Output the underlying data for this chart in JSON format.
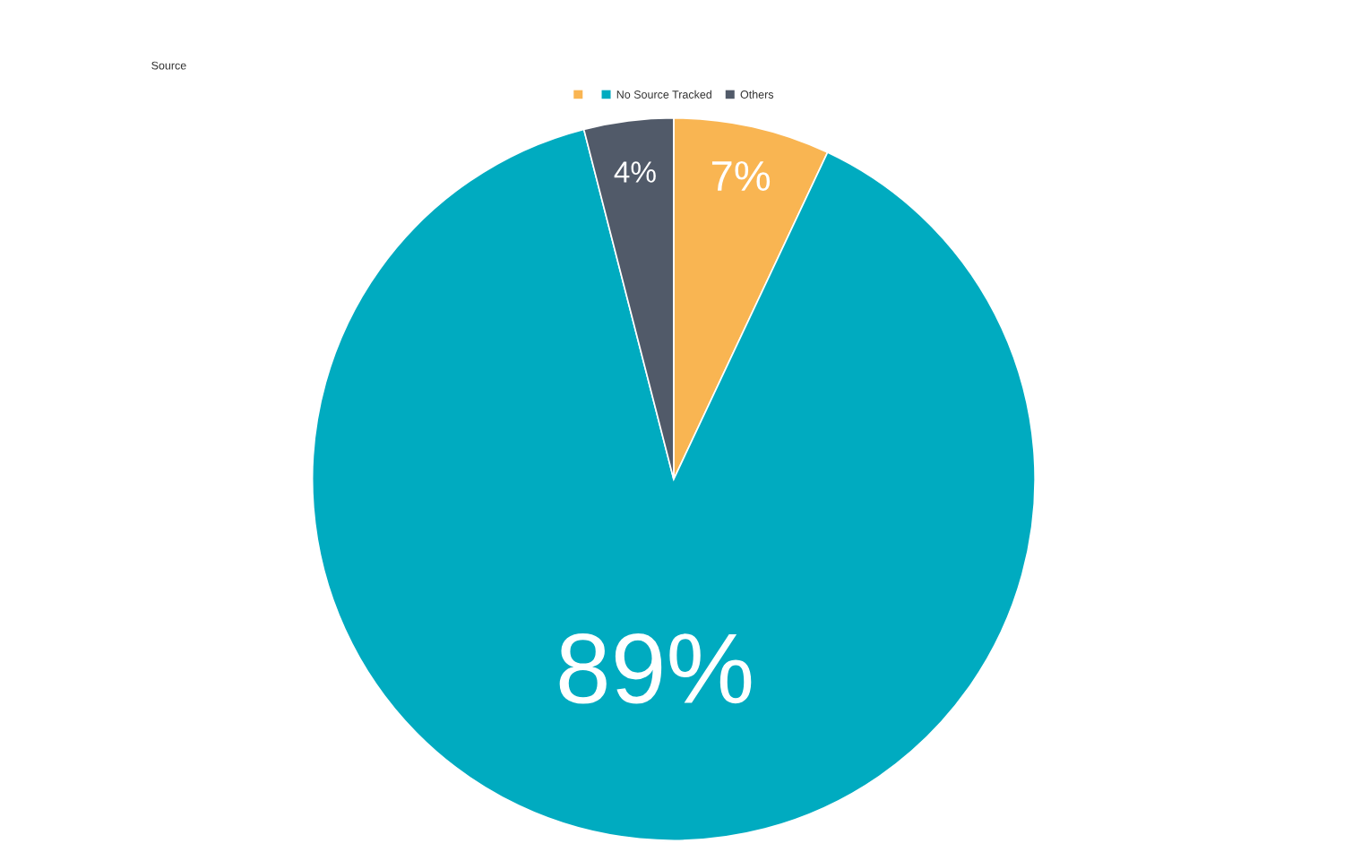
{
  "chart_data": {
    "type": "pie",
    "title": "Source",
    "categories": [
      null,
      "No Source Tracked",
      "Others"
    ],
    "values": [
      7,
      89,
      4
    ],
    "colors": [
      "#f9b552",
      "#00abc0",
      "#515a69"
    ],
    "value_labels": [
      "7%",
      "89%",
      "4%"
    ],
    "legend": "top"
  }
}
